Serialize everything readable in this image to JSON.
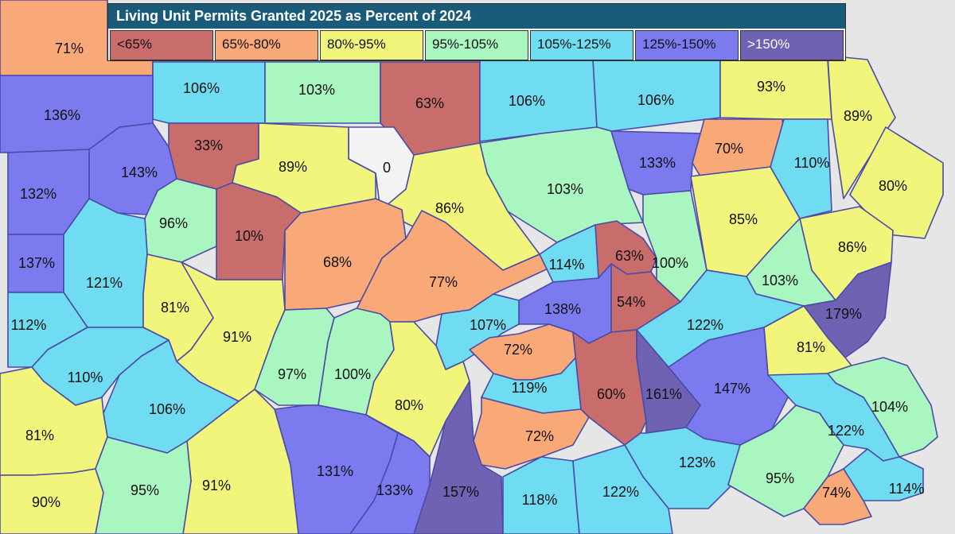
{
  "title": "Living Unit Permits Granted 2025 as Percent of 2024",
  "colors": {
    "lt65": "#c96c6c",
    "c65_80": "#f9a877",
    "c80_95": "#f1f57c",
    "c95_105": "#a9f6c1",
    "c105_125": "#6fdcf2",
    "c125_150": "#7b7bef",
    "gt150": "#6f62b3",
    "nodata": "#f3f3f3",
    "title_bg": "#195b79"
  },
  "legend": [
    {
      "label": "<65%",
      "color": "#c96c6c"
    },
    {
      "label": "65%-80%",
      "color": "#f9a877"
    },
    {
      "label": "80%-95%",
      "color": "#f1f57c"
    },
    {
      "label": "95%-105%",
      "color": "#a9f6c1"
    },
    {
      "label": "105%-125%",
      "color": "#6fdcf2"
    },
    {
      "label": "125%-150%",
      "color": "#7b7bef"
    },
    {
      "label": ">150%",
      "color": "#6f62b3"
    }
  ],
  "counties": [
    {
      "label": "71%",
      "value": 71
    },
    {
      "label": "106%",
      "value": 106
    },
    {
      "label": "103%",
      "value": 103
    },
    {
      "label": "63%",
      "value": 63
    },
    {
      "label": "106%",
      "value": 106
    },
    {
      "label": "106%",
      "value": 106
    },
    {
      "label": "93%",
      "value": 93
    },
    {
      "label": "89%",
      "value": 89
    },
    {
      "label": "136%",
      "value": 136
    },
    {
      "label": "33%",
      "value": 33
    },
    {
      "label": "0",
      "value": 0
    },
    {
      "label": "89%",
      "value": 89
    },
    {
      "label": "103%",
      "value": 103
    },
    {
      "label": "133%",
      "value": 133
    },
    {
      "label": "70%",
      "value": 70
    },
    {
      "label": "110%",
      "value": 110
    },
    {
      "label": "80%",
      "value": 80
    },
    {
      "label": "143%",
      "value": 143
    },
    {
      "label": "132%",
      "value": 132
    },
    {
      "label": "96%",
      "value": 96
    },
    {
      "label": "10%",
      "value": 10
    },
    {
      "label": "86%",
      "value": 86
    },
    {
      "label": "85%",
      "value": 85
    },
    {
      "label": "137%",
      "value": 137
    },
    {
      "label": "121%",
      "value": 121
    },
    {
      "label": "68%",
      "value": 68
    },
    {
      "label": "77%",
      "value": 77
    },
    {
      "label": "114%",
      "value": 114
    },
    {
      "label": "63%",
      "value": 63
    },
    {
      "label": "100%",
      "value": 100
    },
    {
      "label": "86%",
      "value": 86
    },
    {
      "label": "103%",
      "value": 103
    },
    {
      "label": "81%",
      "value": 81
    },
    {
      "label": "112%",
      "value": 112
    },
    {
      "label": "138%",
      "value": 138
    },
    {
      "label": "54%",
      "value": 54
    },
    {
      "label": "179%",
      "value": 179
    },
    {
      "label": "91%",
      "value": 91
    },
    {
      "label": "107%",
      "value": 107
    },
    {
      "label": "122%",
      "value": 122
    },
    {
      "label": "72%",
      "value": 72
    },
    {
      "label": "110%",
      "value": 110
    },
    {
      "label": "97%",
      "value": 97
    },
    {
      "label": "100%",
      "value": 100
    },
    {
      "label": "81%",
      "value": 81
    },
    {
      "label": "119%",
      "value": 119
    },
    {
      "label": "60%",
      "value": 60
    },
    {
      "label": "161%",
      "value": 161
    },
    {
      "label": "147%",
      "value": 147
    },
    {
      "label": "106%",
      "value": 106
    },
    {
      "label": "80%",
      "value": 80
    },
    {
      "label": "104%",
      "value": 104
    },
    {
      "label": "81%",
      "value": 81
    },
    {
      "label": "72%",
      "value": 72
    },
    {
      "label": "122%",
      "value": 122
    },
    {
      "label": "123%",
      "value": 123
    },
    {
      "label": "131%",
      "value": 131
    },
    {
      "label": "95%",
      "value": 95
    },
    {
      "label": "91%",
      "value": 91
    },
    {
      "label": "133%",
      "value": 133
    },
    {
      "label": "157%",
      "value": 157
    },
    {
      "label": "118%",
      "value": 118
    },
    {
      "label": "122%",
      "value": 122
    },
    {
      "label": "74%",
      "value": 74
    },
    {
      "label": "114%",
      "value": 114
    },
    {
      "label": "90%",
      "value": 90
    },
    {
      "label": "95%",
      "value": 95
    }
  ]
}
